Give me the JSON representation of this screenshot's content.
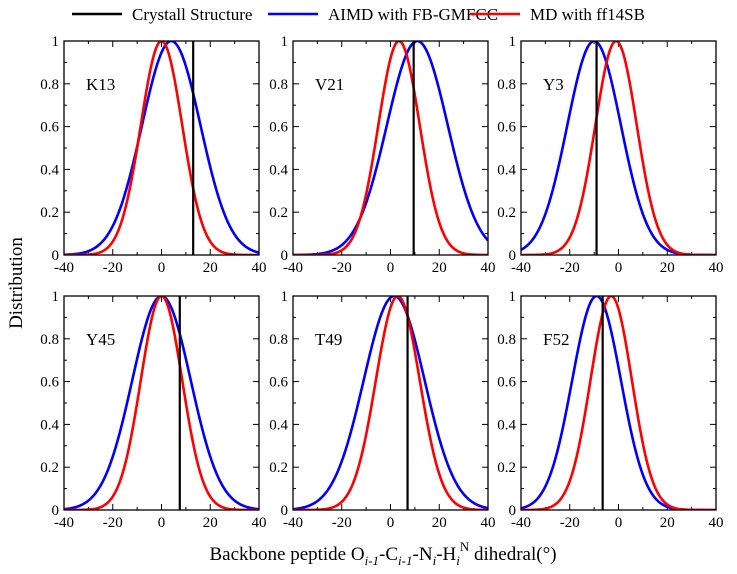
{
  "chart_data": {
    "type": "line",
    "title": "",
    "xlabel": {
      "prefix": "Backbone peptide O",
      "sub1": "i-1",
      "mid1": "-C",
      "sub2": "i-1",
      "mid2": "-N",
      "sub3": "i",
      "mid3": "-H",
      "sub4": "i",
      "sup4": "N",
      "suffix": " dihedral(°)"
    },
    "ylabel": "Distribution",
    "xlim": [
      -40,
      40
    ],
    "ylim": [
      0,
      1
    ],
    "xticks": [
      -40,
      -20,
      0,
      20,
      40
    ],
    "yticks": [
      0,
      0.2,
      0.4,
      0.6,
      0.8,
      1
    ],
    "ytick_labels": [
      "0",
      "0.2",
      "0.4",
      "0.6",
      "0.8",
      "1"
    ],
    "legend": {
      "position": "top",
      "entries": [
        {
          "name": "Crystall Structure",
          "color": "#000000"
        },
        {
          "name": "AIMD with FB-GMFCC",
          "color": "#0000ff"
        },
        {
          "name": "MD with ff14SB",
          "color": "#ff0000"
        }
      ]
    },
    "series_style": {
      "crystal": {
        "color": "#000000",
        "kind": "vertical-line"
      },
      "aimd": {
        "color": "#0000ff",
        "kind": "gaussian"
      },
      "md": {
        "color": "#ff0000",
        "kind": "gaussian"
      }
    },
    "panels": [
      {
        "label": "K13",
        "crystal": 13,
        "aimd": {
          "mean": 4,
          "sigma": 12
        },
        "md": {
          "mean": 0,
          "sigma": 8.5
        }
      },
      {
        "label": "V21",
        "crystal": 9.5,
        "aimd": {
          "mean": 11,
          "sigma": 12.5
        },
        "md": {
          "mean": 3.5,
          "sigma": 8.5
        }
      },
      {
        "label": "Y3",
        "crystal": -9,
        "aimd": {
          "mean": -10,
          "sigma": 11
        },
        "md": {
          "mean": -1,
          "sigma": 8.5
        }
      },
      {
        "label": "Y45",
        "crystal": 7.5,
        "aimd": {
          "mean": 0,
          "sigma": 12
        },
        "md": {
          "mean": 0,
          "sigma": 8.5
        }
      },
      {
        "label": "T49",
        "crystal": 7,
        "aimd": {
          "mean": 1.5,
          "sigma": 12.5
        },
        "md": {
          "mean": 3,
          "sigma": 9
        }
      },
      {
        "label": "F52",
        "crystal": -6.5,
        "aimd": {
          "mean": -9,
          "sigma": 10
        },
        "md": {
          "mean": -3,
          "sigma": 8.5
        }
      }
    ]
  }
}
